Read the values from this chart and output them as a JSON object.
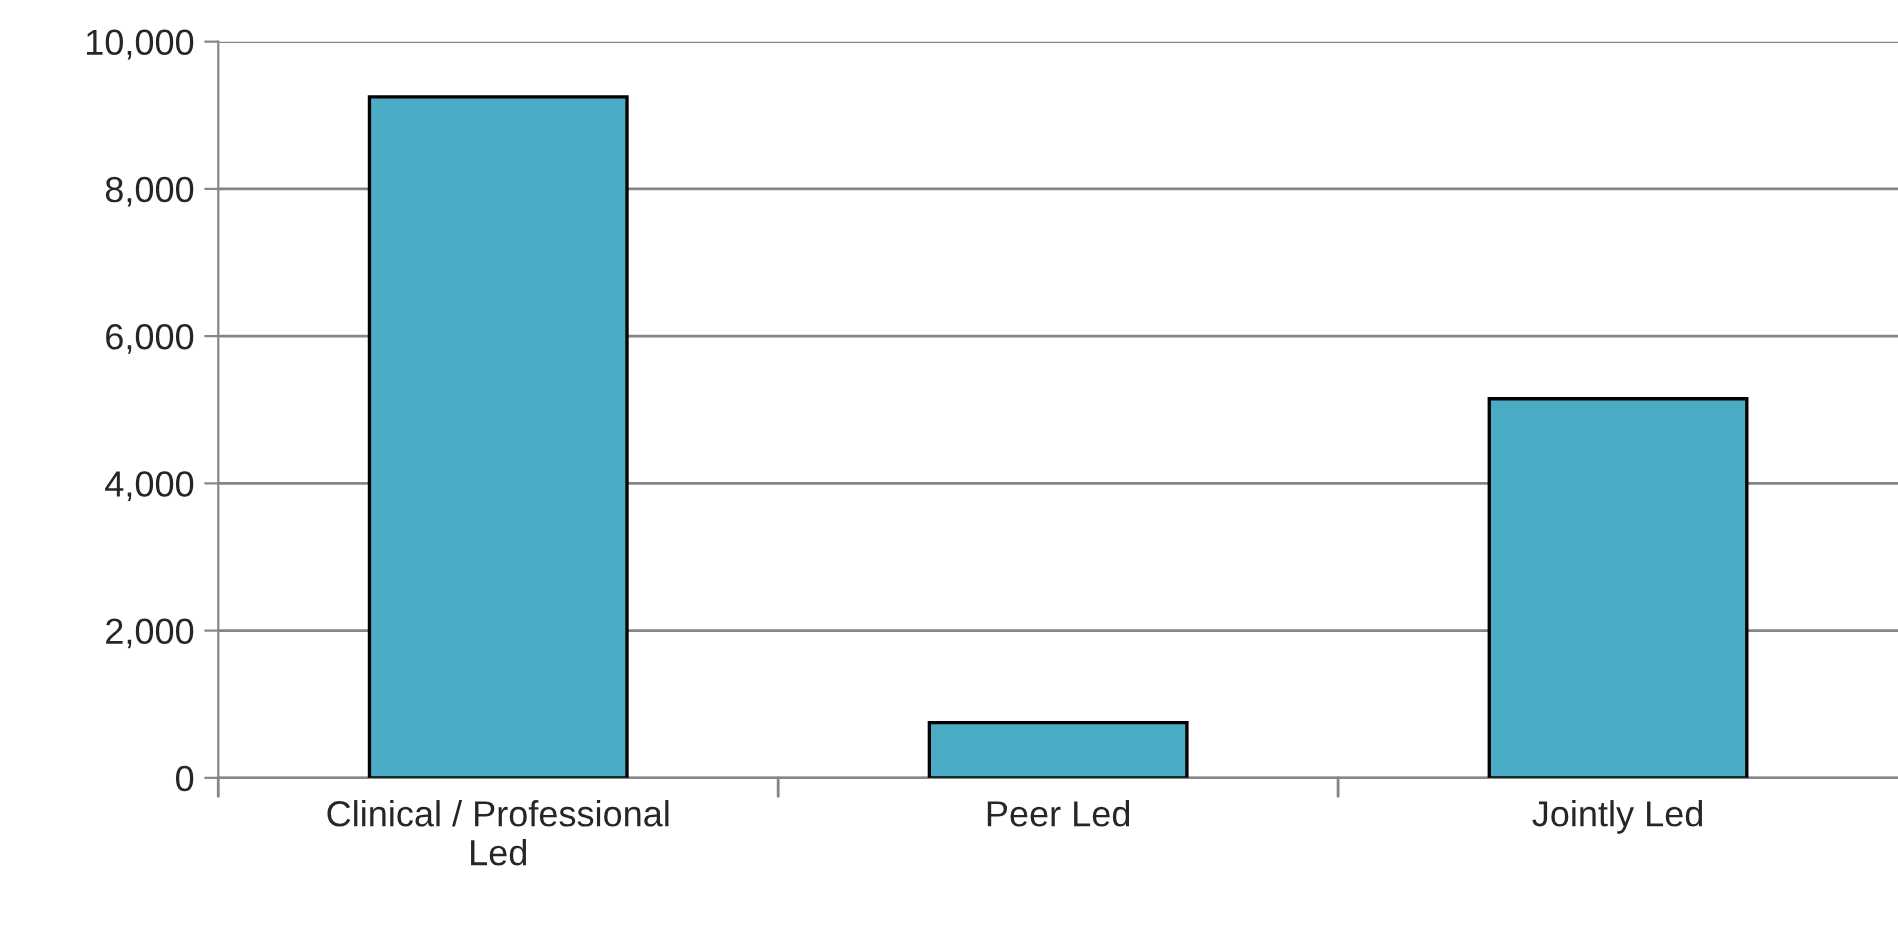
{
  "chart_data": {
    "type": "bar",
    "categories": [
      "Clinical / Professional\nLed",
      "Peer Led",
      "Jointly Led"
    ],
    "values": [
      9250,
      750,
      5150
    ],
    "color": "#4bacc6",
    "ylim": [
      0,
      10000
    ],
    "yticks": [
      {
        "value": 0,
        "label": "0"
      },
      {
        "value": 2000,
        "label": "2,000"
      },
      {
        "value": 4000,
        "label": "4,000"
      },
      {
        "value": 6000,
        "label": "6,000"
      },
      {
        "value": 8000,
        "label": "8,000"
      },
      {
        "value": 10000,
        "label": "10,000"
      }
    ],
    "grid": "y"
  }
}
